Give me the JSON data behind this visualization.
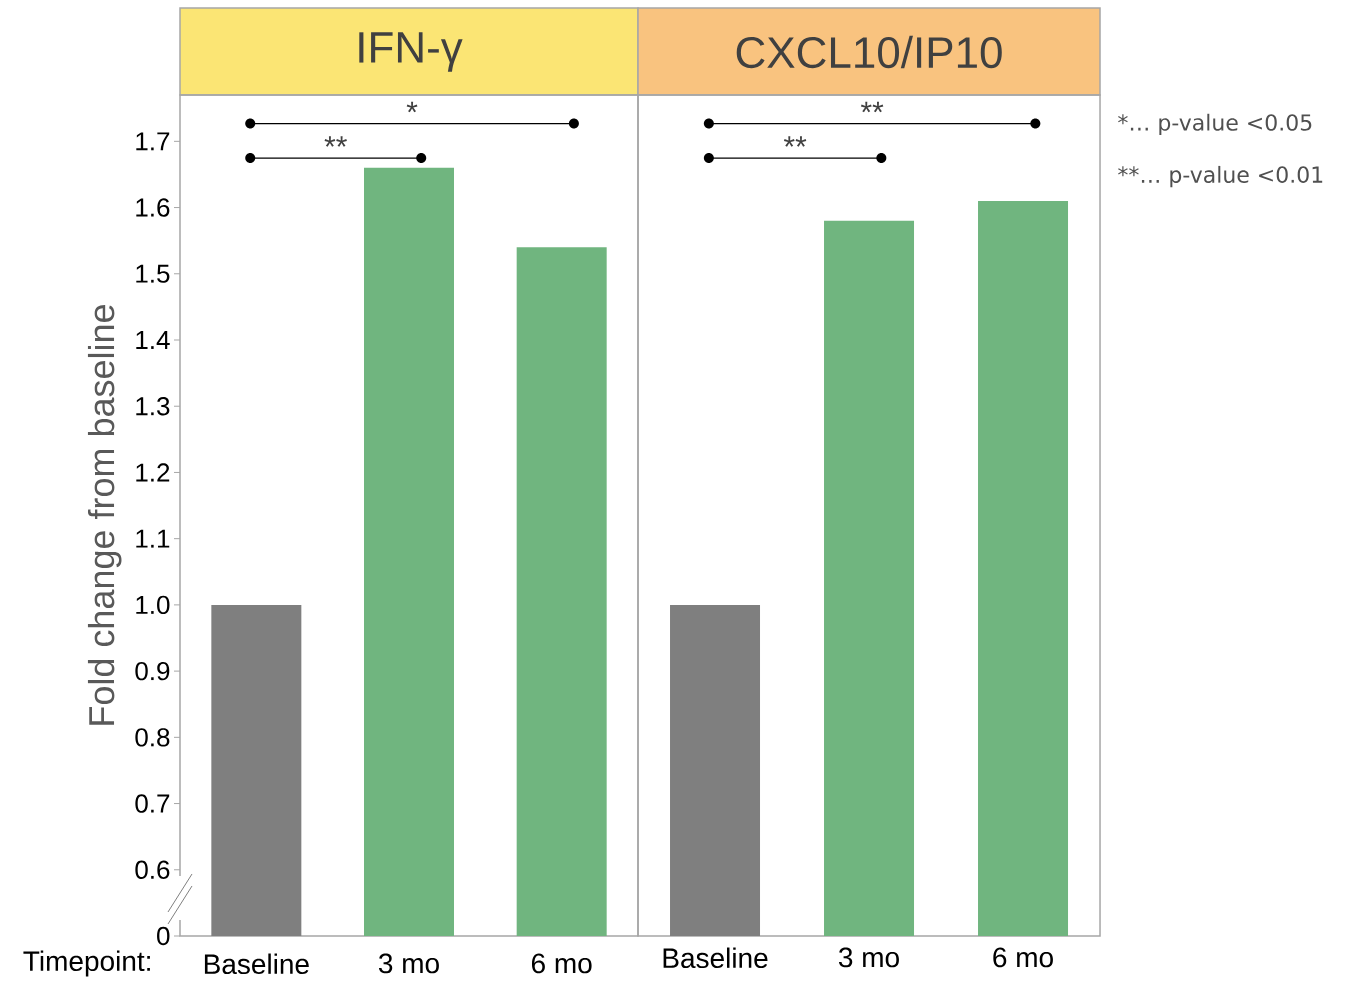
{
  "chart_data": [
    {
      "type": "bar",
      "title": "IFN-γ",
      "xlabel": "Timepoint:",
      "ylabel": "Fold change from baseline",
      "categories": [
        "Baseline",
        "3 mo",
        "6 mo"
      ],
      "values": [
        1.0,
        1.66,
        1.54
      ],
      "colors": [
        "#7f7f7f",
        "#70b57f",
        "#70b57f"
      ],
      "ylim": [
        0.5,
        1.77
      ],
      "yticks": [
        {
          "value": 0.5,
          "label": "0"
        },
        0.6,
        0.7,
        0.8,
        0.9,
        {
          "value": 1,
          "label": "1.0"
        },
        1.1,
        1.2,
        1.3,
        1.4,
        1.5,
        1.6,
        1.7
      ],
      "annotations": [
        "*",
        "**"
      ]
    },
    {
      "type": "bar",
      "title": "CXCL10/IP10",
      "categories": [
        "Baseline",
        "3 mo",
        "6 mo"
      ],
      "values": [
        1.0,
        1.58,
        1.61
      ],
      "colors": [
        "#7f7f7f",
        "#70b57f",
        "#70b57f"
      ],
      "ylim": [
        0.5,
        1.77
      ],
      "tick_labels": "x",
      "annotations": [
        "**",
        "**",
        "*… p-value <0.05",
        "**… p-value <0.01"
      ]
    }
  ]
}
